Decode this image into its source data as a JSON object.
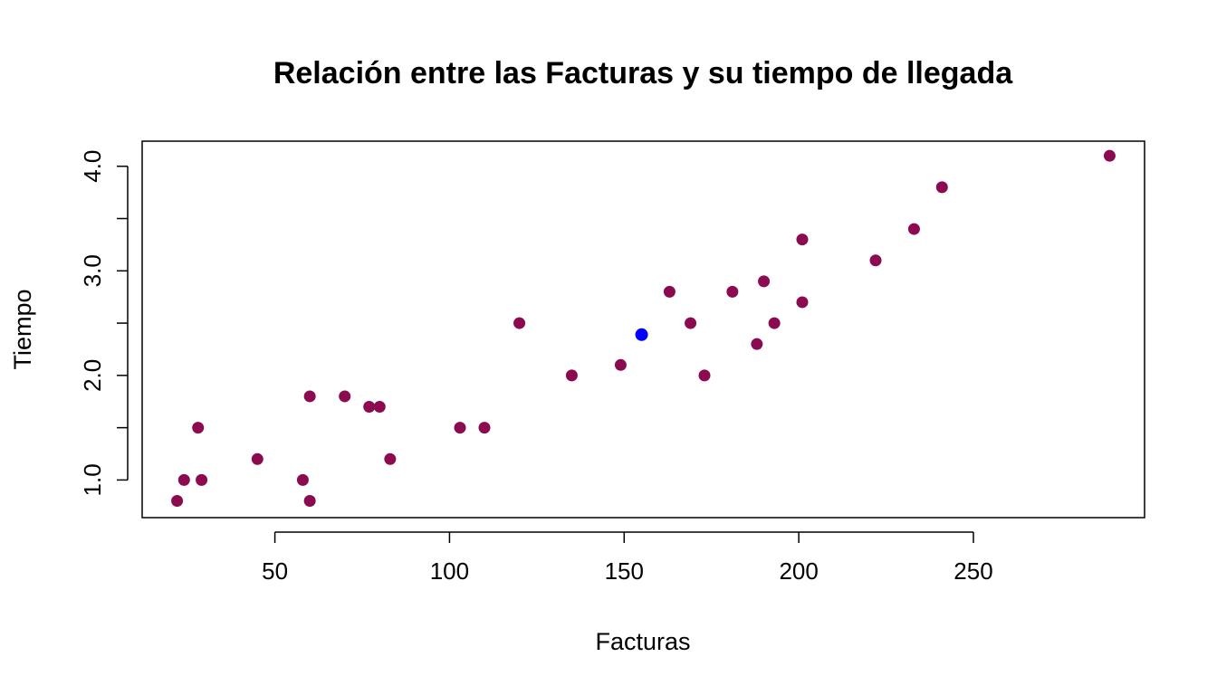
{
  "chart_data": {
    "type": "scatter",
    "title": "Relación entre las Facturas y su tiempo de llegada",
    "xlabel": "Facturas",
    "ylabel": "Tiempo",
    "xlim": [
      12,
      299
    ],
    "ylim": [
      0.64,
      4.24
    ],
    "xticks": [
      50,
      100,
      150,
      200,
      250
    ],
    "yticks": [
      1.0,
      1.5,
      2.0,
      2.5,
      3.0,
      3.5,
      4.0
    ],
    "ytick_labels": [
      "1.0",
      "",
      "2.0",
      "",
      "3.0",
      "",
      "4.0"
    ],
    "grid": false,
    "point_color": "#8B0A50",
    "highlight_color": "#0000FF",
    "points": [
      {
        "x": 22,
        "y": 0.8
      },
      {
        "x": 24,
        "y": 1.0
      },
      {
        "x": 28,
        "y": 1.5
      },
      {
        "x": 29,
        "y": 1.0
      },
      {
        "x": 45,
        "y": 1.2
      },
      {
        "x": 58,
        "y": 1.0
      },
      {
        "x": 60,
        "y": 1.8
      },
      {
        "x": 60,
        "y": 0.8
      },
      {
        "x": 70,
        "y": 1.8
      },
      {
        "x": 77,
        "y": 1.7
      },
      {
        "x": 80,
        "y": 1.7
      },
      {
        "x": 83,
        "y": 1.2
      },
      {
        "x": 103,
        "y": 1.5
      },
      {
        "x": 110,
        "y": 1.5
      },
      {
        "x": 120,
        "y": 2.5
      },
      {
        "x": 135,
        "y": 2.0
      },
      {
        "x": 149,
        "y": 2.1
      },
      {
        "x": 163,
        "y": 2.8
      },
      {
        "x": 169,
        "y": 2.5
      },
      {
        "x": 173,
        "y": 2.0
      },
      {
        "x": 181,
        "y": 2.8
      },
      {
        "x": 188,
        "y": 2.3
      },
      {
        "x": 190,
        "y": 2.9
      },
      {
        "x": 193,
        "y": 2.5
      },
      {
        "x": 201,
        "y": 3.3
      },
      {
        "x": 201,
        "y": 2.7
      },
      {
        "x": 222,
        "y": 3.1
      },
      {
        "x": 233,
        "y": 3.4
      },
      {
        "x": 241,
        "y": 3.8
      },
      {
        "x": 289,
        "y": 4.1
      }
    ],
    "highlight_points": [
      {
        "x": 155,
        "y": 2.39
      }
    ]
  }
}
